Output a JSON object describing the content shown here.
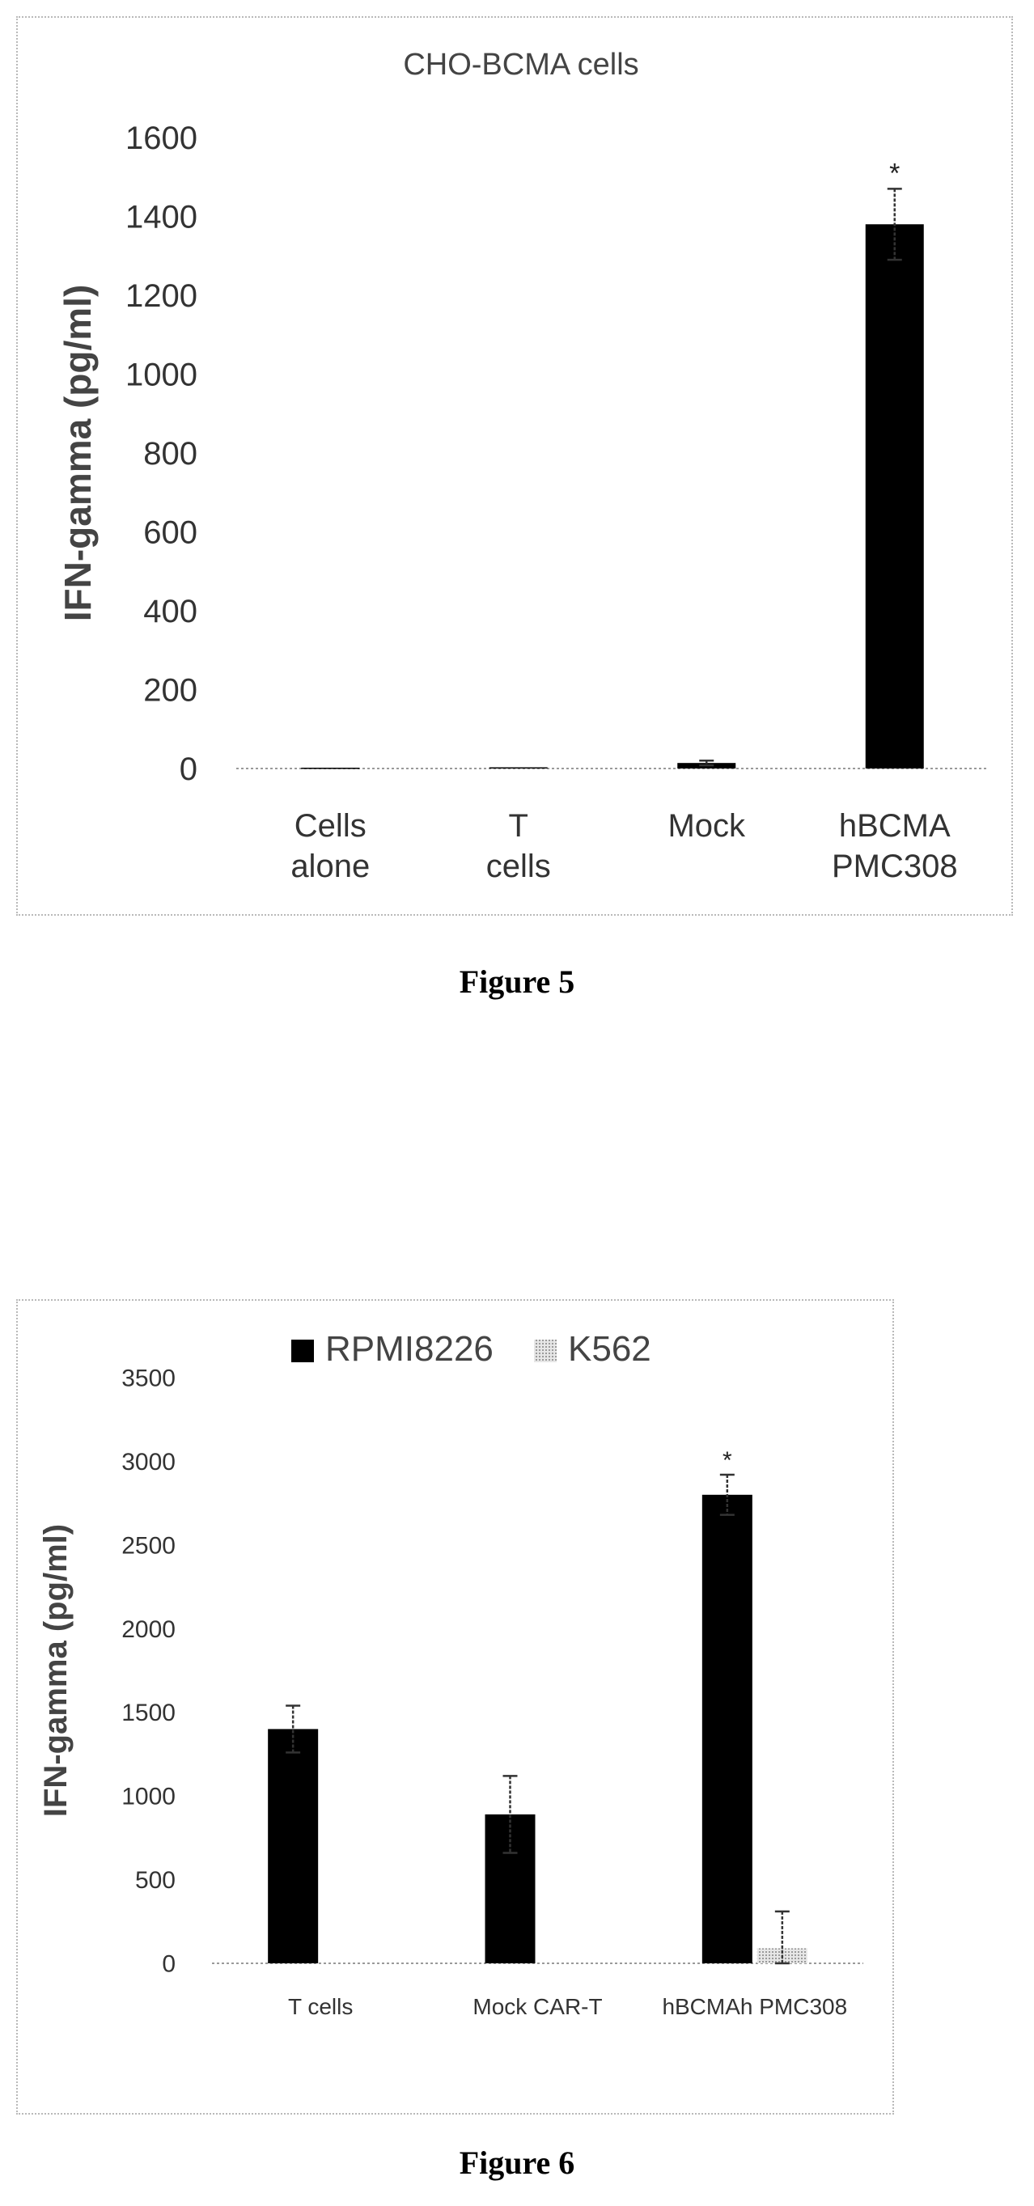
{
  "figures": [
    {
      "caption": "Figure 5",
      "chart_data": {
        "type": "bar",
        "title": "CHO-BCMA cells",
        "ylabel": "IFN-gamma (pg/ml)",
        "xlabel": "",
        "categories": [
          "Cells alone",
          "T cells",
          "Mock",
          "hBCMA PMC308"
        ],
        "series": [
          {
            "name": "",
            "color": "#000000",
            "values": [
              2,
              3,
              14,
              1380
            ],
            "error": [
              0,
              0,
              6,
              90
            ]
          }
        ],
        "significance": [
          "",
          "",
          "",
          "*"
        ],
        "ylim": [
          0,
          1600
        ],
        "yticks": [
          0,
          200,
          400,
          600,
          800,
          1000,
          1200,
          1400,
          1600
        ],
        "grid": false,
        "legend": null
      }
    },
    {
      "caption": "Figure 6",
      "chart_data": {
        "type": "bar",
        "title": "",
        "ylabel": "IFN-gamma (pg/ml)",
        "xlabel": "",
        "categories": [
          "T cells",
          "Mock CAR-T",
          "hBCMAh PMC308"
        ],
        "series": [
          {
            "name": "RPMI8226",
            "color": "#000000",
            "values": [
              1400,
              890,
              2800
            ],
            "error": [
              140,
              230,
              120
            ]
          },
          {
            "name": "K562",
            "color": "#d4d4d4",
            "values": [
              0,
              0,
              90
            ],
            "error": [
              0,
              0,
              220
            ]
          }
        ],
        "significance": [
          "",
          "",
          "*"
        ],
        "ylim": [
          0,
          3500
        ],
        "yticks": [
          0,
          500,
          1000,
          1500,
          2000,
          2500,
          3000,
          3500
        ],
        "grid": false,
        "legend": "top"
      }
    }
  ]
}
